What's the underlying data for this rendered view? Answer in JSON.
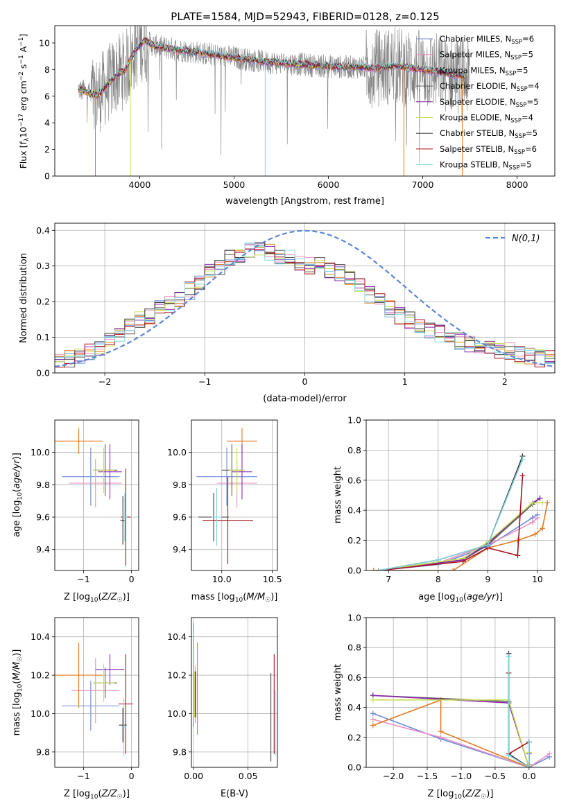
{
  "title": "PLATE=1584, MJD=52943, FIBERID=0128, z=0.125",
  "colors": {
    "chabrier_miles": "#6a8ad8",
    "salpeter_miles": "#ea8ec2",
    "kroupa_miles": "#e07a1f",
    "chabrier_elodie": "#5a5a5a",
    "salpeter_elodie": "#8a2aa8",
    "kroupa_elodie": "#c8e050",
    "chabrier_stelib": "#3a3a3a",
    "salpeter_stelib": "#a8101e",
    "kroupa_stelib": "#80d4e0",
    "data": "#808080",
    "grid": "#b0b0b0"
  },
  "legend": [
    {
      "label": "Chabrier MILES, N",
      "sub": "SSP",
      "eq": "=6",
      "color_key": "chabrier_miles"
    },
    {
      "label": "Salpeter MILES, N",
      "sub": "SSP",
      "eq": "=5",
      "color_key": "salpeter_miles"
    },
    {
      "label": "Kroupa MILES, N",
      "sub": "SSP",
      "eq": "=5",
      "color_key": "kroupa_miles"
    },
    {
      "label": "Chabrier ELODIE, N",
      "sub": "SSP",
      "eq": "=4",
      "color_key": "chabrier_elodie"
    },
    {
      "label": "Salpeter ELODIE, N",
      "sub": "SSP",
      "eq": "=5",
      "color_key": "salpeter_elodie"
    },
    {
      "label": "Kroupa ELODIE, N",
      "sub": "SSP",
      "eq": "=4",
      "color_key": "kroupa_elodie"
    },
    {
      "label": "Chabrier STELIB, N",
      "sub": "SSP",
      "eq": "=5",
      "color_key": "chabrier_stelib"
    },
    {
      "label": "Salpeter STELIB, N",
      "sub": "SSP",
      "eq": "=6",
      "color_key": "salpeter_stelib"
    },
    {
      "label": "Kroupa STELIB, N",
      "sub": "SSP",
      "eq": "=5",
      "color_key": "kroupa_stelib"
    }
  ],
  "chart_data": [
    {
      "type": "line",
      "id": "spectrum",
      "xlabel": "wavelength [Angstrom, rest frame]",
      "ylabel": "Flux [fλ10⁻¹⁷ erg cm⁻² s⁻¹ A⁻¹]",
      "xlim": [
        3100,
        8400
      ],
      "ylim": [
        0,
        11.3
      ],
      "xticks": [
        4000,
        5000,
        6000,
        7000,
        8000
      ],
      "yticks": [
        0,
        2,
        4,
        6,
        8,
        10
      ],
      "grid": false,
      "legend_position": "upper-right",
      "model_continuum": {
        "x": [
          3350,
          3450,
          3550,
          3650,
          3750,
          3850,
          3950,
          4050,
          4150,
          4300,
          4500,
          4700,
          4900,
          5100,
          5300,
          5500,
          5700,
          5900,
          6100,
          6300,
          6500,
          6700,
          6900,
          7100,
          7300,
          7500
        ],
        "y": [
          6.5,
          6.3,
          6.0,
          6.8,
          7.6,
          8.0,
          9.4,
          10.2,
          9.8,
          9.6,
          9.4,
          9.2,
          9.0,
          8.8,
          8.6,
          8.5,
          8.4,
          8.3,
          8.2,
          8.2,
          8.1,
          8.3,
          8.1,
          7.9,
          7.7,
          7.4
        ]
      },
      "series_names": [
        "Chabrier MILES",
        "Salpeter MILES",
        "Kroupa MILES",
        "Chabrier ELODIE",
        "Salpeter ELODIE",
        "Kroupa ELODIE",
        "Chabrier STELIB",
        "Salpeter STELIB",
        "Kroupa STELIB"
      ]
    },
    {
      "type": "step",
      "id": "residuals",
      "xlabel": "(data-model)/error",
      "ylabel": "Normed distribution",
      "xlim": [
        -2.5,
        2.5
      ],
      "ylim": [
        0,
        0.42
      ],
      "xticks": [
        -2,
        -1,
        0,
        1,
        2
      ],
      "yticks": [
        0.0,
        0.1,
        0.2,
        0.3,
        0.4
      ],
      "grid": true,
      "legend_position": "upper-right",
      "reference_label": "N(0,1)",
      "reference_curve": "gaussian",
      "bin_width": 0.1,
      "hist_base": [
        0.03,
        0.04,
        0.05,
        0.06,
        0.07,
        0.09,
        0.11,
        0.13,
        0.15,
        0.16,
        0.18,
        0.19,
        0.21,
        0.23,
        0.25,
        0.28,
        0.3,
        0.32,
        0.33,
        0.34,
        0.35,
        0.34,
        0.33,
        0.32,
        0.31,
        0.3,
        0.3,
        0.29,
        0.28,
        0.26,
        0.24,
        0.22,
        0.2,
        0.18,
        0.16,
        0.15,
        0.13,
        0.12,
        0.11,
        0.1,
        0.09,
        0.08,
        0.07,
        0.07,
        0.06,
        0.06,
        0.05,
        0.05,
        0.04,
        0.04
      ]
    },
    {
      "type": "scatter",
      "id": "age-vs-Z",
      "xlabel": "Z [log10(Z/Z☉)]",
      "ylabel": "age [log10(age/yr)]",
      "xlim": [
        -1.6,
        0.15
      ],
      "ylim": [
        9.27,
        10.2
      ],
      "xticks": [
        -1,
        0
      ],
      "yticks": [
        9.4,
        9.6,
        9.8,
        10.0
      ],
      "grid": true,
      "points": [
        {
          "k": "chabrier_miles",
          "x": -0.85,
          "xe": 0.6,
          "y": 9.85,
          "ye": 0.18
        },
        {
          "k": "salpeter_miles",
          "x": -0.75,
          "xe": 0.55,
          "y": 9.81,
          "ye": 0.15
        },
        {
          "k": "kroupa_miles",
          "x": -1.1,
          "xe": 0.5,
          "y": 10.07,
          "ye": 0.08
        },
        {
          "k": "chabrier_elodie",
          "x": -0.55,
          "xe": 0.25,
          "y": 9.89,
          "ye": 0.16
        },
        {
          "k": "salpeter_elodie",
          "x": -0.45,
          "xe": 0.25,
          "y": 9.88,
          "ye": 0.17
        },
        {
          "k": "kroupa_elodie",
          "x": -0.58,
          "xe": 0.22,
          "y": 9.89,
          "ye": 0.14
        },
        {
          "k": "chabrier_stelib",
          "x": -0.18,
          "xe": 0.05,
          "y": 9.58,
          "ye": 0.15
        },
        {
          "k": "salpeter_stelib",
          "x": -0.12,
          "xe": 0.1,
          "y": 9.6,
          "ye": 0.3
        },
        {
          "k": "kroupa_stelib",
          "x": -0.14,
          "xe": 0.05,
          "y": 9.6,
          "ye": 0.15
        }
      ]
    },
    {
      "type": "scatter",
      "id": "age-vs-mass",
      "xlabel": "mass [log10(M/M☉)]",
      "ylabel": "",
      "xlim": [
        9.7,
        10.55
      ],
      "ylim": [
        9.27,
        10.2
      ],
      "xticks": [
        10.0,
        10.5
      ],
      "yticks": [
        9.4,
        9.6,
        9.8,
        10.0
      ],
      "grid": true,
      "points": [
        {
          "k": "chabrier_miles",
          "x": 10.05,
          "xe": 0.3,
          "y": 9.85,
          "ye": 0.18
        },
        {
          "k": "salpeter_miles",
          "x": 10.15,
          "xe": 0.2,
          "y": 9.81,
          "ye": 0.15
        },
        {
          "k": "kroupa_miles",
          "x": 10.2,
          "xe": 0.15,
          "y": 10.07,
          "ye": 0.08
        },
        {
          "k": "chabrier_elodie",
          "x": 10.1,
          "xe": 0.1,
          "y": 9.89,
          "ye": 0.16
        },
        {
          "k": "salpeter_elodie",
          "x": 10.2,
          "xe": 0.1,
          "y": 9.88,
          "ye": 0.17
        },
        {
          "k": "kroupa_elodie",
          "x": 10.15,
          "xe": 0.08,
          "y": 9.89,
          "ye": 0.14
        },
        {
          "k": "chabrier_stelib",
          "x": 9.92,
          "xe": 0.15,
          "y": 9.6,
          "ye": 0.15
        },
        {
          "k": "salpeter_stelib",
          "x": 10.06,
          "xe": 0.25,
          "y": 9.58,
          "ye": 0.27
        },
        {
          "k": "kroupa_stelib",
          "x": 9.95,
          "xe": 0.05,
          "y": 9.6,
          "ye": 0.18
        }
      ]
    },
    {
      "type": "line",
      "id": "weight-vs-age",
      "xlabel": "age [log10(age/yr)]",
      "ylabel": "mass weight",
      "xlim": [
        6.55,
        10.35
      ],
      "ylim": [
        0,
        1.0
      ],
      "xticks": [
        7,
        8,
        9,
        10
      ],
      "yticks": [
        0.0,
        0.2,
        0.4,
        0.6,
        0.8,
        1.0
      ],
      "grid": true,
      "series": [
        {
          "k": "chabrier_miles",
          "x": [
            6.8,
            8.0,
            9.0,
            9.9,
            10.0
          ],
          "y": [
            0.0,
            0.04,
            0.16,
            0.35,
            0.37
          ]
        },
        {
          "k": "salpeter_miles",
          "x": [
            6.8,
            8.0,
            9.0,
            9.9,
            10.0
          ],
          "y": [
            0.0,
            0.05,
            0.17,
            0.32,
            0.35
          ]
        },
        {
          "k": "kroupa_miles",
          "x": [
            6.7,
            8.3,
            9.0,
            9.6,
            9.95,
            10.1,
            10.2
          ],
          "y": [
            0.0,
            0.0,
            0.15,
            0.2,
            0.24,
            0.28,
            0.45
          ]
        },
        {
          "k": "chabrier_elodie",
          "x": [
            6.8,
            8.5,
            9.0,
            9.9,
            10.05
          ],
          "y": [
            0.0,
            0.07,
            0.17,
            0.44,
            0.48
          ]
        },
        {
          "k": "salpeter_elodie",
          "x": [
            6.8,
            8.5,
            9.0,
            9.9,
            10.05
          ],
          "y": [
            0.0,
            0.07,
            0.18,
            0.45,
            0.48
          ]
        },
        {
          "k": "kroupa_elodie",
          "x": [
            6.8,
            8.5,
            9.0,
            9.9,
            10.1
          ],
          "y": [
            0.0,
            0.08,
            0.19,
            0.45,
            0.45
          ]
        },
        {
          "k": "chabrier_stelib",
          "x": [
            6.8,
            8.0,
            9.0,
            9.7
          ],
          "y": [
            0.0,
            0.07,
            0.17,
            0.76
          ]
        },
        {
          "k": "salpeter_stelib",
          "x": [
            6.8,
            8.5,
            9.0,
            9.6,
            9.7
          ],
          "y": [
            0.0,
            0.06,
            0.15,
            0.1,
            0.63
          ]
        },
        {
          "k": "kroupa_stelib",
          "x": [
            6.8,
            8.0,
            9.0,
            9.7
          ],
          "y": [
            0.0,
            0.07,
            0.17,
            0.74
          ]
        }
      ]
    },
    {
      "type": "scatter",
      "id": "mass-vs-Z",
      "xlabel": "Z [log10(Z/Z☉)]",
      "ylabel": "mass [log10(M/M☉)]",
      "xlim": [
        -1.6,
        0.15
      ],
      "ylim": [
        9.72,
        10.5
      ],
      "xticks": [
        -1,
        0
      ],
      "yticks": [
        9.8,
        10.0,
        10.2,
        10.4
      ],
      "grid": true,
      "points": [
        {
          "k": "chabrier_miles",
          "x": -0.85,
          "xe": 0.6,
          "y": 10.04,
          "ye": 0.13
        },
        {
          "k": "salpeter_miles",
          "x": -0.75,
          "xe": 0.5,
          "y": 10.12,
          "ye": 0.17
        },
        {
          "k": "kroupa_miles",
          "x": -1.1,
          "xe": 0.5,
          "y": 10.2,
          "ye": 0.17
        },
        {
          "k": "chabrier_elodie",
          "x": -0.55,
          "xe": 0.25,
          "y": 10.16,
          "ye": 0.08
        },
        {
          "k": "salpeter_elodie",
          "x": -0.45,
          "xe": 0.3,
          "y": 10.23,
          "ye": 0.08
        },
        {
          "k": "kroupa_elodie",
          "x": -0.58,
          "xe": 0.22,
          "y": 10.16,
          "ye": 0.1
        },
        {
          "k": "chabrier_stelib",
          "x": -0.18,
          "xe": 0.08,
          "y": 9.94,
          "ye": 0.09
        },
        {
          "k": "salpeter_stelib",
          "x": -0.12,
          "xe": 0.15,
          "y": 10.05,
          "ye": 0.26
        },
        {
          "k": "kroupa_stelib",
          "x": -0.16,
          "xe": 0.05,
          "y": 9.93,
          "ye": 0.15
        }
      ]
    },
    {
      "type": "scatter",
      "id": "mass-vs-ebv",
      "xlabel": "E(B-V)",
      "ylabel": "",
      "xlim": [
        -0.002,
        0.077
      ],
      "ylim": [
        9.72,
        10.5
      ],
      "xticks": [
        0.0,
        0.05
      ],
      "yticks": [
        9.8,
        10.0,
        10.2,
        10.4
      ],
      "grid": true,
      "points": [
        {
          "k": "chabrier_miles",
          "x": 0.0,
          "xe": 0.0,
          "y": 10.2,
          "ye": 0.27
        },
        {
          "k": "salpeter_miles",
          "x": 0.0015,
          "xe": 0.0,
          "y": 10.1,
          "ye": 0.15
        },
        {
          "k": "kroupa_miles",
          "x": 0.0035,
          "xe": 0.0,
          "y": 10.13,
          "ye": 0.24
        },
        {
          "k": "chabrier_elodie",
          "x": 0.0012,
          "xe": 0.0,
          "y": 10.1,
          "ye": 0.12
        },
        {
          "k": "salpeter_elodie",
          "x": 0.002,
          "xe": 0.0,
          "y": 10.1,
          "ye": 0.12
        },
        {
          "k": "kroupa_elodie",
          "x": 0.0008,
          "xe": 0.0,
          "y": 10.1,
          "ye": 0.12
        },
        {
          "k": "chabrier_stelib",
          "x": 0.071,
          "xe": 0.0,
          "y": 9.98,
          "ye": 0.23
        },
        {
          "k": "salpeter_stelib",
          "x": 0.074,
          "xe": 0.0,
          "y": 10.05,
          "ye": 0.26
        },
        {
          "k": "kroupa_stelib",
          "x": 0.075,
          "xe": 0.0,
          "y": 9.95,
          "ye": 0.17
        }
      ]
    },
    {
      "type": "line",
      "id": "weight-vs-Z",
      "xlabel": "Z [log10(Z/Z☉)]",
      "ylabel": "mass weight",
      "xlim": [
        -2.4,
        0.38
      ],
      "ylim": [
        0,
        1.0
      ],
      "xticks": [
        -2.0,
        -1.5,
        -1.0,
        -0.5,
        0.0
      ],
      "yticks": [
        0.0,
        0.2,
        0.4,
        0.6,
        0.8,
        1.0
      ],
      "grid": true,
      "series": [
        {
          "k": "chabrier_miles",
          "x": [
            -2.3,
            -1.3,
            0.0,
            0.3
          ],
          "y": [
            0.36,
            0.19,
            0.0,
            0.07
          ]
        },
        {
          "k": "salpeter_miles",
          "x": [
            -2.3,
            -1.3,
            0.0,
            0.3
          ],
          "y": [
            0.32,
            0.2,
            0.0,
            0.09
          ]
        },
        {
          "k": "kroupa_miles",
          "x": [
            -2.3,
            -1.3,
            -1.3,
            0.0,
            0.0
          ],
          "y": [
            0.28,
            0.45,
            0.24,
            0.0,
            0.02
          ]
        },
        {
          "k": "chabrier_elodie",
          "x": [
            -2.3,
            -0.3,
            0.0,
            0.0
          ],
          "y": [
            0.48,
            0.44,
            0.0,
            0.17
          ]
        },
        {
          "k": "salpeter_elodie",
          "x": [
            -2.3,
            -0.3,
            0.0,
            0.0
          ],
          "y": [
            0.48,
            0.43,
            0.0,
            0.09
          ]
        },
        {
          "k": "kroupa_elodie",
          "x": [
            -2.3,
            -0.3,
            0.0,
            0.0
          ],
          "y": [
            0.45,
            0.45,
            0.0,
            0.1
          ]
        },
        {
          "k": "chabrier_stelib",
          "x": [
            -0.3,
            -0.3,
            0.0,
            0.0
          ],
          "y": [
            0.76,
            0.09,
            0.0,
            0.17
          ]
        },
        {
          "k": "salpeter_stelib",
          "x": [
            -0.3,
            -0.3,
            0.0,
            0.0
          ],
          "y": [
            0.63,
            0.09,
            0.17,
            0.0
          ]
        },
        {
          "k": "kroupa_stelib",
          "x": [
            -0.3,
            -0.3,
            0.0,
            0.0
          ],
          "y": [
            0.74,
            0.08,
            0.0,
            0.17
          ]
        }
      ]
    }
  ]
}
